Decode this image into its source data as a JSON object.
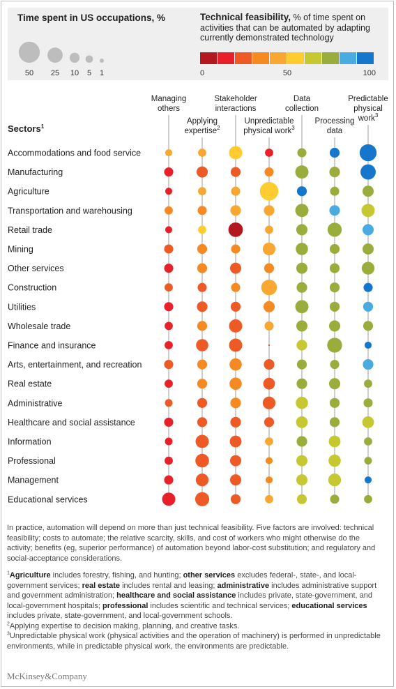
{
  "legend": {
    "size_title": "Time spent in US occupations, %",
    "size_values": [
      "50",
      "25",
      "10",
      "5",
      "1"
    ],
    "color_title_bold": "Technical feasibility,",
    "color_title_rest": " % of time spent on activities that can be automated by adapting currently demonstrated technology",
    "color_ticks": [
      "0",
      "50",
      "100"
    ],
    "color_scale": [
      "#b5171f",
      "#e8202a",
      "#ee5a26",
      "#f58a22",
      "#f7a732",
      "#fccc30",
      "#c6c832",
      "#99ad3c",
      "#4aabe0",
      "#1576cc"
    ]
  },
  "sectors_label": "Sectors",
  "sectors_sup": "1",
  "columns": [
    {
      "label": "Managing others",
      "sup": ""
    },
    {
      "label": "Applying expertise",
      "sup": "2"
    },
    {
      "label": "Stakeholder interactions",
      "sup": ""
    },
    {
      "label": "Unpredictable physical work",
      "sup": "3"
    },
    {
      "label": "Data collection",
      "sup": ""
    },
    {
      "label": "Processing data",
      "sup": ""
    },
    {
      "label": "Predictable physical work",
      "sup": "3"
    }
  ],
  "chart_data": {
    "type": "bubble-matrix",
    "size_measure": "Time spent in US occupations, %",
    "color_measure": "Technical feasibility, %",
    "rows": [
      {
        "sector": "Accommodations and food service",
        "size": [
          1,
          2,
          10,
          2,
          3,
          4,
          20
        ],
        "feasibility": [
          45,
          45,
          50,
          10,
          75,
          90,
          100
        ]
      },
      {
        "sector": "Manufacturing",
        "size": [
          3,
          6,
          4,
          3,
          10,
          5,
          15
        ],
        "feasibility": [
          10,
          20,
          20,
          35,
          75,
          70,
          90
        ]
      },
      {
        "sector": "Agriculture",
        "size": [
          1,
          2,
          3,
          25,
          4,
          3,
          6
        ],
        "feasibility": [
          10,
          40,
          40,
          50,
          90,
          75,
          75
        ]
      },
      {
        "sector": "Transportation and warehousing",
        "size": [
          2,
          3,
          5,
          5,
          10,
          5,
          10
        ],
        "feasibility": [
          35,
          35,
          40,
          40,
          75,
          85,
          65
        ]
      },
      {
        "sector": "Retail trade",
        "size": [
          1,
          2,
          13,
          2,
          6,
          12,
          6
        ],
        "feasibility": [
          10,
          50,
          5,
          40,
          75,
          75,
          85
        ]
      },
      {
        "sector": "Mining",
        "size": [
          3,
          4,
          3,
          9,
          8,
          4,
          6
        ],
        "feasibility": [
          20,
          30,
          35,
          40,
          75,
          70,
          75
        ]
      },
      {
        "sector": "Other services",
        "size": [
          3,
          4,
          6,
          4,
          6,
          4,
          9
        ],
        "feasibility": [
          10,
          30,
          20,
          35,
          75,
          70,
          75
        ]
      },
      {
        "sector": "Construction",
        "size": [
          2,
          3,
          3,
          16,
          5,
          4,
          3
        ],
        "feasibility": [
          20,
          20,
          35,
          40,
          75,
          75,
          90
        ]
      },
      {
        "sector": "Utilities",
        "size": [
          3,
          5,
          4,
          6,
          10,
          4,
          4
        ],
        "feasibility": [
          10,
          20,
          20,
          30,
          75,
          70,
          85
        ]
      },
      {
        "sector": "Wholesale trade",
        "size": [
          2,
          4,
          10,
          3,
          6,
          6,
          4
        ],
        "feasibility": [
          10,
          30,
          20,
          40,
          75,
          70,
          70
        ]
      },
      {
        "sector": "Finance and insurance",
        "size": [
          2,
          8,
          10,
          0.2,
          5,
          14,
          1
        ],
        "feasibility": [
          10,
          20,
          20,
          20,
          65,
          75,
          100
        ]
      },
      {
        "sector": "Arts, entertainment, and recreation",
        "size": [
          3,
          4,
          8,
          5,
          4,
          3,
          5
        ],
        "feasibility": [
          20,
          30,
          30,
          20,
          70,
          75,
          85
        ]
      },
      {
        "sector": "Real estate",
        "size": [
          2,
          4,
          8,
          7,
          5,
          6,
          2
        ],
        "feasibility": [
          10,
          30,
          30,
          20,
          70,
          75,
          70
        ]
      },
      {
        "sector": "Administrative",
        "size": [
          1.5,
          4,
          5,
          9,
          8,
          4,
          3
        ],
        "feasibility": [
          20,
          20,
          30,
          20,
          65,
          70,
          75
        ]
      },
      {
        "sector": "Healthcare and social assistance",
        "size": [
          3,
          4,
          5,
          4,
          7,
          4,
          7
        ],
        "feasibility": [
          10,
          20,
          20,
          20,
          65,
          75,
          65
        ]
      },
      {
        "sector": "Information",
        "size": [
          1.5,
          10,
          7,
          2,
          5,
          7,
          2
        ],
        "feasibility": [
          10,
          20,
          20,
          40,
          70,
          65,
          75
        ]
      },
      {
        "sector": "Professional",
        "size": [
          2,
          11,
          6,
          1,
          6,
          8,
          1.5
        ],
        "feasibility": [
          10,
          20,
          20,
          35,
          65,
          65,
          75
        ]
      },
      {
        "sector": "Management",
        "size": [
          3,
          9,
          6,
          1,
          6,
          9,
          1
        ],
        "feasibility": [
          10,
          20,
          20,
          35,
          65,
          65,
          90
        ]
      },
      {
        "sector": "Educational services",
        "size": [
          10,
          12,
          4,
          2,
          4,
          3,
          2
        ],
        "feasibility": [
          10,
          20,
          20,
          40,
          65,
          70,
          70
        ]
      }
    ]
  },
  "notes": {
    "practice": "In practice, automation will depend on more than just technical feasibility. Five factors are involved: technical feasibility; costs to automate; the relative scarcity, skills, and cost of workers who might otherwise do the activity; benefits (eg, superior performance) of automation beyond labor-cost substitution; and regulatory and social-acceptance considerations.",
    "fn1_sup": "1",
    "fn1": [
      {
        "b": "Agriculture",
        "t": " includes forestry, fishing, and hunting; "
      },
      {
        "b": "other services",
        "t": " excludes federal-, state-, and local-government services; "
      },
      {
        "b": "real estate",
        "t": " includes rental and leasing; "
      },
      {
        "b": "administrative",
        "t": " includes administrative support and government administration; "
      },
      {
        "b": "healthcare and social assistance",
        "t": " includes private, state-government, and local-government hospitals; "
      },
      {
        "b": "professional",
        "t": " includes scientific and technical services; "
      },
      {
        "b": "educational services",
        "t": " includes private, state-government, and local-government schools."
      }
    ],
    "fn2_sup": "2",
    "fn2": "Applying expertise to decision making, planning, and creative tasks.",
    "fn3_sup": "3",
    "fn3": "Unpredictable physical work (physical activities and the operation of machinery) is performed in unpredictable environments, while in predictable physical work, the environments are predictable."
  },
  "brand": "McKinsey&Company"
}
